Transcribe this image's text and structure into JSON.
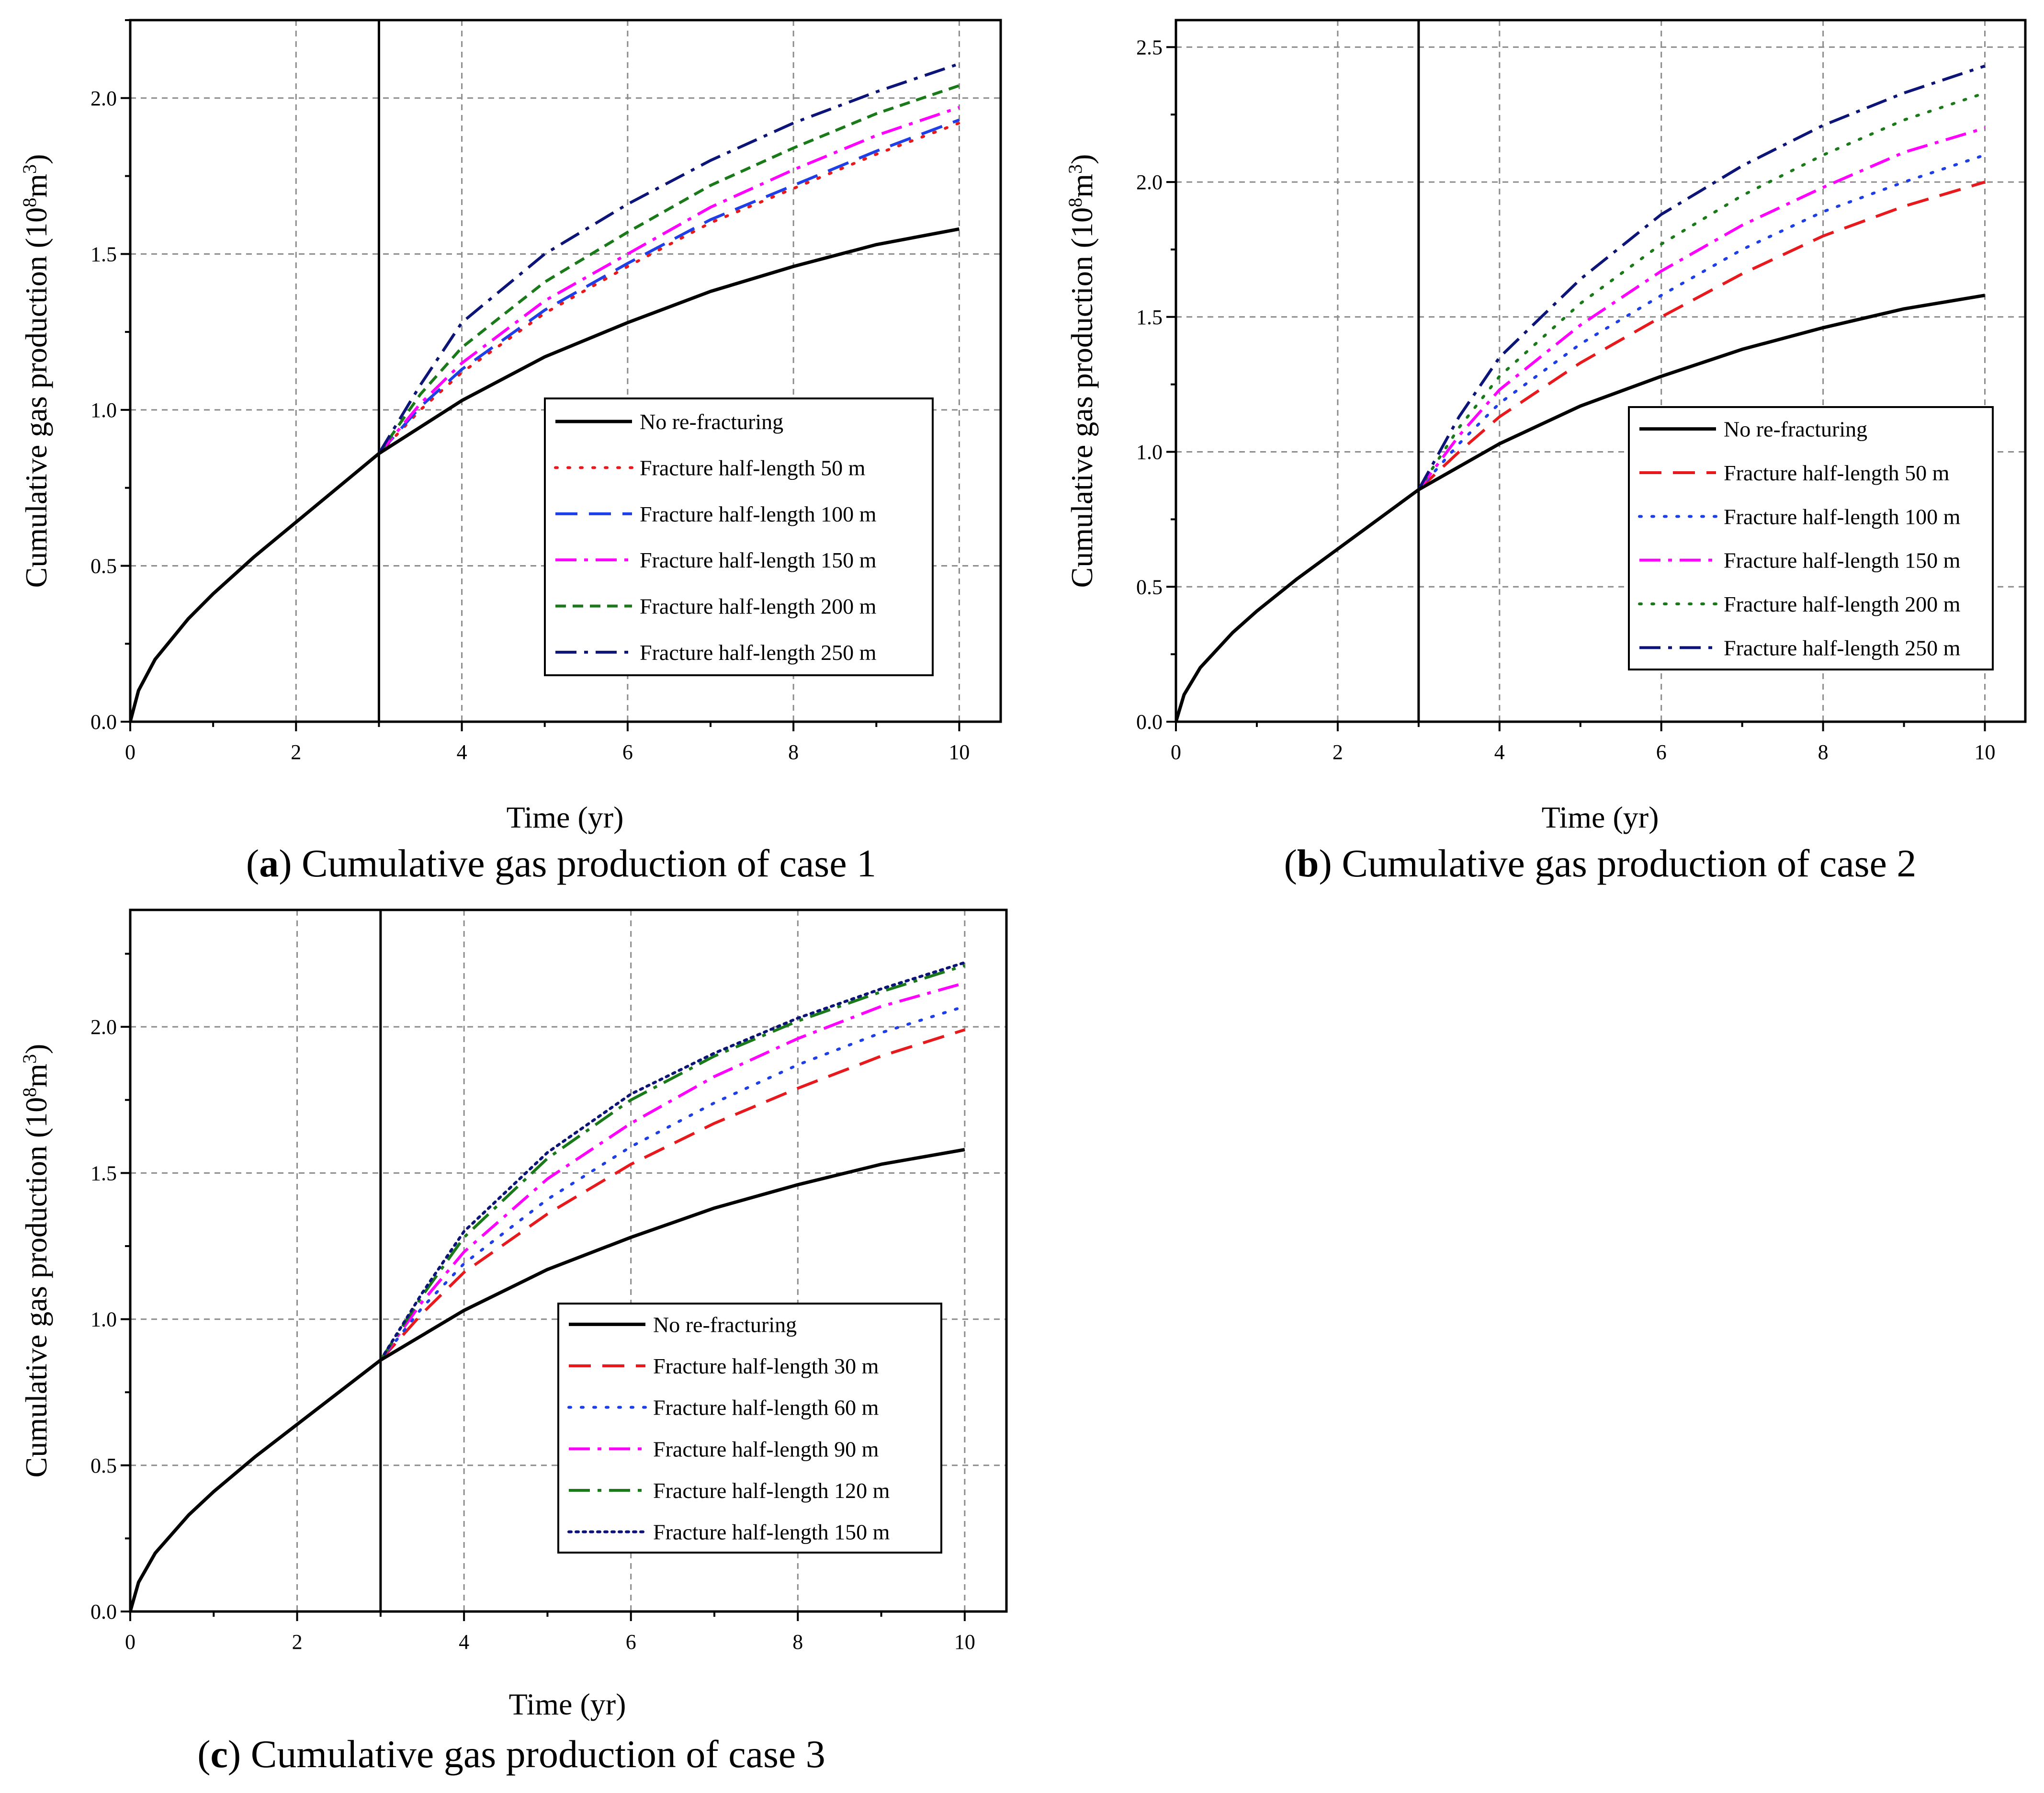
{
  "chart_data": [
    {
      "id": "a",
      "type": "line",
      "caption": {
        "letter": "a",
        "open": "(",
        "close": ")",
        "text": " Cumulative gas production of case 1"
      },
      "xlabel": "Time (yr)",
      "ylabel": {
        "main": "Cumulative gas production (10",
        "sup1": "8",
        "mid": "m",
        "sup2": "3",
        "end": ")"
      },
      "xlim": [
        0,
        10.5
      ],
      "ylim": [
        0,
        2.25
      ],
      "xticks": [
        0,
        2,
        4,
        6,
        8,
        10
      ],
      "xtick_labels": [
        "0",
        "2",
        "4",
        "6",
        "8",
        "10"
      ],
      "yticks": [
        0,
        0.5,
        1.0,
        1.5,
        2.0
      ],
      "ytick_labels": [
        "0.0",
        "0.5",
        "1.0",
        "1.5",
        "2.0"
      ],
      "grid": true,
      "vline_x": 3,
      "legend_position": "center-right",
      "base_series": {
        "name": "No re-fracturing",
        "color": "#000000",
        "dash": "solid",
        "x": [
          0,
          0.1,
          0.3,
          0.7,
          1.0,
          1.5,
          2.0,
          2.5,
          3.0,
          4.0,
          5.0,
          6.0,
          7.0,
          8.0,
          9.0,
          10.0
        ],
        "values": [
          0,
          0.1,
          0.2,
          0.33,
          0.41,
          0.53,
          0.64,
          0.75,
          0.86,
          1.03,
          1.17,
          1.28,
          1.38,
          1.46,
          1.53,
          1.58
        ]
      },
      "series": [
        {
          "name": "Fracture half-length 50 m",
          "color": "#e8191c",
          "dash": "dot",
          "x": [
            3,
            3.5,
            4,
            5,
            6,
            7,
            8,
            9,
            10
          ],
          "values": [
            0.86,
            1.0,
            1.12,
            1.31,
            1.46,
            1.6,
            1.71,
            1.82,
            1.92
          ]
        },
        {
          "name": "Fracture half-length 100 m",
          "color": "#1f3fe6",
          "dash": "longdash",
          "x": [
            3,
            3.5,
            4,
            5,
            6,
            7,
            8,
            9,
            10
          ],
          "values": [
            0.86,
            1.01,
            1.13,
            1.32,
            1.47,
            1.61,
            1.72,
            1.83,
            1.93
          ]
        },
        {
          "name": "Fracture half-length 150 m",
          "color": "#ff00ff",
          "dash": "dashdot",
          "x": [
            3,
            3.5,
            4,
            5,
            6,
            7,
            8,
            9,
            10
          ],
          "values": [
            0.86,
            1.02,
            1.15,
            1.35,
            1.5,
            1.65,
            1.77,
            1.88,
            1.97
          ]
        },
        {
          "name": "Fracture half-length 200 m",
          "color": "#1a7a1a",
          "dash": "shortdash",
          "x": [
            3,
            3.5,
            4,
            5,
            6,
            7,
            8,
            9,
            10
          ],
          "values": [
            0.86,
            1.05,
            1.2,
            1.41,
            1.57,
            1.72,
            1.84,
            1.95,
            2.04
          ]
        },
        {
          "name": "Fracture half-length 250 m",
          "color": "#0c1478",
          "dash": "dashdot",
          "x": [
            3,
            3.5,
            4,
            5,
            6,
            7,
            8,
            9,
            10
          ],
          "values": [
            0.86,
            1.08,
            1.28,
            1.5,
            1.66,
            1.8,
            1.92,
            2.02,
            2.11
          ]
        }
      ]
    },
    {
      "id": "b",
      "type": "line",
      "caption": {
        "letter": "b",
        "open": "(",
        "close": ")",
        "text": " Cumulative gas production of case 2"
      },
      "xlabel": "Time (yr)",
      "ylabel": {
        "main": "Cumulative gas production (10",
        "sup1": "8",
        "mid": "m",
        "sup2": "3",
        "end": ")"
      },
      "xlim": [
        0,
        10.5
      ],
      "ylim": [
        0,
        2.6
      ],
      "xticks": [
        0,
        2,
        4,
        6,
        8,
        10
      ],
      "xtick_labels": [
        "0",
        "2",
        "4",
        "6",
        "8",
        "10"
      ],
      "yticks": [
        0,
        0.5,
        1.0,
        1.5,
        2.0,
        2.5
      ],
      "ytick_labels": [
        "0.0",
        "0.5",
        "1.0",
        "1.5",
        "2.0",
        "2.5"
      ],
      "grid": true,
      "vline_x": 3,
      "legend_position": "center-right",
      "base_series": {
        "name": "No re-fracturing",
        "color": "#000000",
        "dash": "solid",
        "x": [
          0,
          0.1,
          0.3,
          0.7,
          1.0,
          1.5,
          2.0,
          2.5,
          3.0,
          4.0,
          5.0,
          6.0,
          7.0,
          8.0,
          9.0,
          10.0
        ],
        "values": [
          0,
          0.1,
          0.2,
          0.33,
          0.41,
          0.53,
          0.64,
          0.75,
          0.86,
          1.03,
          1.17,
          1.28,
          1.38,
          1.46,
          1.53,
          1.58
        ]
      },
      "series": [
        {
          "name": "Fracture half-length 50 m",
          "color": "#e8191c",
          "dash": "longdash",
          "x": [
            3,
            3.5,
            4,
            5,
            6,
            7,
            8,
            9,
            10
          ],
          "values": [
            0.86,
            1.0,
            1.13,
            1.33,
            1.5,
            1.66,
            1.8,
            1.91,
            2.0
          ]
        },
        {
          "name": "Fracture half-length 100 m",
          "color": "#1f3fe6",
          "dash": "dot",
          "x": [
            3,
            3.5,
            4,
            5,
            6,
            7,
            8,
            9,
            10
          ],
          "values": [
            0.86,
            1.03,
            1.18,
            1.4,
            1.58,
            1.75,
            1.89,
            2.0,
            2.1
          ]
        },
        {
          "name": "Fracture half-length 150 m",
          "color": "#ff00ff",
          "dash": "dashdot",
          "x": [
            3,
            3.5,
            4,
            5,
            6,
            7,
            8,
            9,
            10
          ],
          "values": [
            0.86,
            1.06,
            1.23,
            1.47,
            1.67,
            1.84,
            1.98,
            2.11,
            2.2
          ]
        },
        {
          "name": "Fracture half-length 200 m",
          "color": "#1a7a1a",
          "dash": "dot",
          "x": [
            3,
            3.5,
            4,
            5,
            6,
            7,
            8,
            9,
            10
          ],
          "values": [
            0.86,
            1.09,
            1.28,
            1.55,
            1.77,
            1.95,
            2.1,
            2.23,
            2.33
          ]
        },
        {
          "name": "Fracture half-length 250 m",
          "color": "#0c1478",
          "dash": "dashdot",
          "x": [
            3,
            3.5,
            4,
            5,
            6,
            7,
            8,
            9,
            10
          ],
          "values": [
            0.86,
            1.13,
            1.35,
            1.64,
            1.88,
            2.06,
            2.21,
            2.33,
            2.43
          ]
        }
      ]
    },
    {
      "id": "c",
      "type": "line",
      "caption": {
        "letter": "c",
        "open": "(",
        "close": ")",
        "text": " Cumulative gas production of case 3"
      },
      "xlabel": "Time (yr)",
      "ylabel": {
        "main": "Cumulative gas production (10",
        "sup1": "8",
        "mid": "m",
        "sup2": "3",
        "end": ")"
      },
      "xlim": [
        0,
        10.5
      ],
      "ylim": [
        0,
        2.4
      ],
      "xticks": [
        0,
        2,
        4,
        6,
        8,
        10
      ],
      "xtick_labels": [
        "0",
        "2",
        "4",
        "6",
        "8",
        "10"
      ],
      "yticks": [
        0,
        0.5,
        1.0,
        1.5,
        2.0
      ],
      "ytick_labels": [
        "0.0",
        "0.5",
        "1.0",
        "1.5",
        "2.0"
      ],
      "grid": true,
      "vline_x": 3,
      "legend_position": "center-right",
      "base_series": {
        "name": "No re-fracturing",
        "color": "#000000",
        "dash": "solid",
        "x": [
          0,
          0.1,
          0.3,
          0.7,
          1.0,
          1.5,
          2.0,
          2.5,
          3.0,
          4.0,
          5.0,
          6.0,
          7.0,
          8.0,
          9.0,
          10.0
        ],
        "values": [
          0,
          0.1,
          0.2,
          0.33,
          0.41,
          0.53,
          0.64,
          0.75,
          0.86,
          1.03,
          1.17,
          1.28,
          1.38,
          1.46,
          1.53,
          1.58
        ]
      },
      "series": [
        {
          "name": "Fracture half-length 30 m",
          "color": "#e8191c",
          "dash": "longdash",
          "x": [
            3,
            3.5,
            4,
            5,
            6,
            7,
            8,
            9,
            10
          ],
          "values": [
            0.86,
            1.02,
            1.16,
            1.36,
            1.53,
            1.67,
            1.79,
            1.9,
            1.99
          ]
        },
        {
          "name": "Fracture half-length 60 m",
          "color": "#1f3fe6",
          "dash": "dot",
          "x": [
            3,
            3.5,
            4,
            5,
            6,
            7,
            8,
            9,
            10
          ],
          "values": [
            0.86,
            1.04,
            1.19,
            1.41,
            1.59,
            1.74,
            1.87,
            1.98,
            2.07
          ]
        },
        {
          "name": "Fracture half-length 90 m",
          "color": "#ff00ff",
          "dash": "dashdot",
          "x": [
            3,
            3.5,
            4,
            5,
            6,
            7,
            8,
            9,
            10
          ],
          "values": [
            0.86,
            1.06,
            1.23,
            1.48,
            1.67,
            1.83,
            1.96,
            2.07,
            2.15
          ]
        },
        {
          "name": "Fracture half-length 120 m",
          "color": "#1a7a1a",
          "dash": "dashdot",
          "x": [
            3,
            3.5,
            4,
            5,
            6,
            7,
            8,
            9,
            10
          ],
          "values": [
            0.86,
            1.08,
            1.28,
            1.55,
            1.75,
            1.9,
            2.02,
            2.12,
            2.21
          ]
        },
        {
          "name": "Fracture half-length 150 m",
          "color": "#0c1478",
          "dash": "densedot",
          "x": [
            3,
            3.5,
            4,
            5,
            6,
            7,
            8,
            9,
            10
          ],
          "values": [
            0.86,
            1.09,
            1.3,
            1.57,
            1.77,
            1.91,
            2.03,
            2.13,
            2.22
          ]
        }
      ]
    }
  ]
}
